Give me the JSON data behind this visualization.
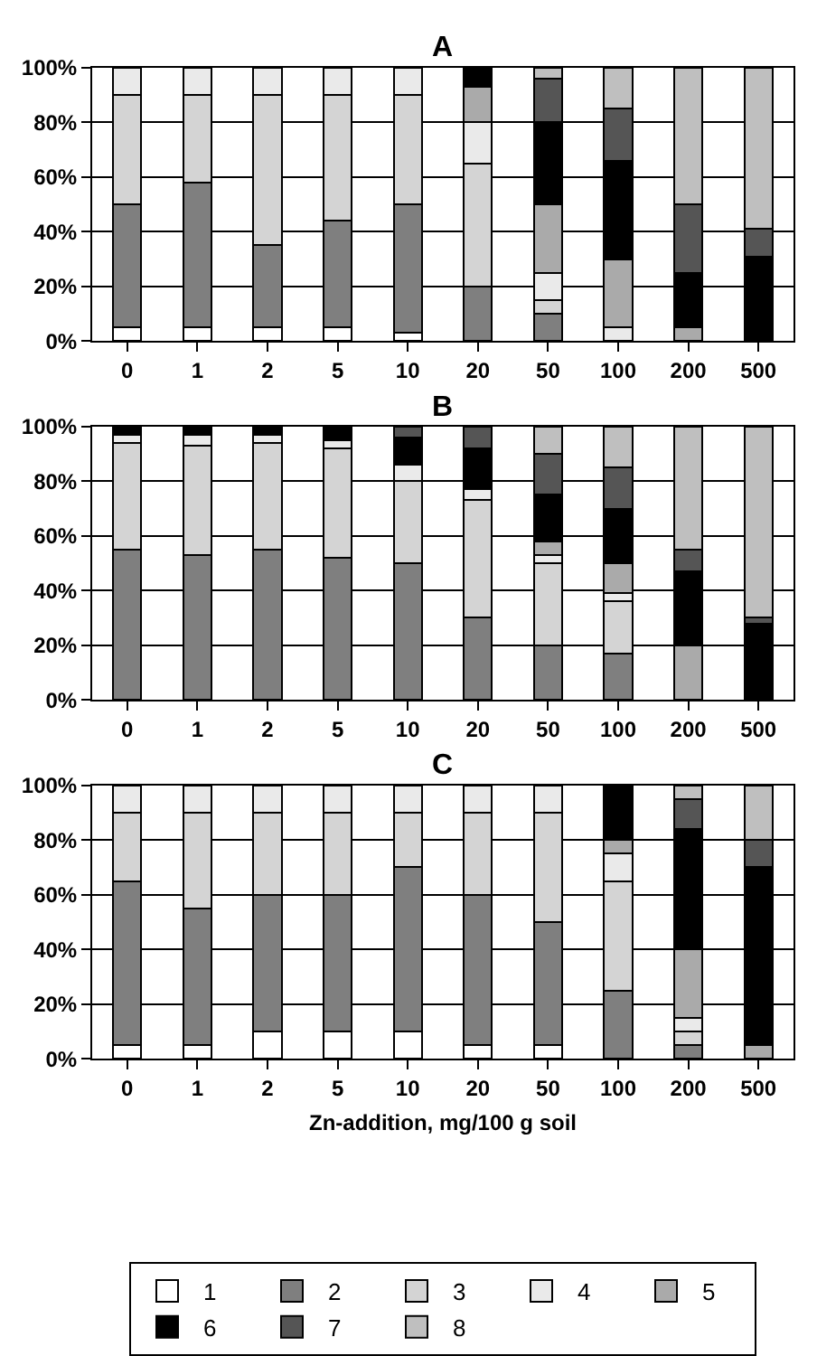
{
  "chart_data": [
    {
      "type": "bar",
      "title": "A",
      "stacked": true,
      "categories": [
        "0",
        "1",
        "2",
        "5",
        "10",
        "20",
        "50",
        "100",
        "200",
        "500"
      ],
      "ylim": [
        0,
        100
      ],
      "yticks": [
        {
          "value": 0,
          "label": "0%"
        },
        {
          "value": 20,
          "label": "20%"
        },
        {
          "value": 40,
          "label": "40%"
        },
        {
          "value": 60,
          "label": "60%"
        },
        {
          "value": 80,
          "label": "80%"
        },
        {
          "value": 100,
          "label": "100%"
        }
      ],
      "grid": "y",
      "series": [
        {
          "color": "#ffffff",
          "values": [
            5,
            5,
            5,
            5,
            3,
            null,
            null,
            null,
            null,
            null
          ]
        },
        {
          "color": "#7f7f7f",
          "values": [
            45,
            53,
            30,
            39,
            47,
            20,
            10,
            null,
            null,
            null
          ]
        },
        {
          "color": "#d4d4d4",
          "values": [
            40,
            32,
            55,
            46,
            40,
            45,
            5,
            null,
            null,
            null
          ]
        },
        {
          "color": "#eaeaea",
          "values": [
            10,
            10,
            10,
            10,
            10,
            15,
            10,
            5,
            null,
            null
          ]
        },
        {
          "color": "#aaaaaa",
          "values": [
            null,
            null,
            null,
            null,
            null,
            13,
            25,
            25,
            5,
            null
          ]
        },
        {
          "color": "#000000",
          "values": [
            null,
            null,
            null,
            null,
            null,
            7,
            30,
            36,
            20,
            31
          ]
        },
        {
          "color": "#555555",
          "values": [
            null,
            null,
            null,
            null,
            null,
            null,
            16,
            19,
            25,
            10
          ]
        },
        {
          "color": "#bfbfbf",
          "values": [
            null,
            null,
            null,
            null,
            null,
            null,
            4,
            15,
            50,
            59
          ]
        }
      ]
    },
    {
      "type": "bar",
      "title": "B",
      "stacked": true,
      "categories": [
        "0",
        "1",
        "2",
        "5",
        "10",
        "20",
        "50",
        "100",
        "200",
        "500"
      ],
      "ylim": [
        0,
        100
      ],
      "yticks": [
        {
          "value": 0,
          "label": "0%"
        },
        {
          "value": 20,
          "label": "20%"
        },
        {
          "value": 40,
          "label": "40%"
        },
        {
          "value": 60,
          "label": "60%"
        },
        {
          "value": 80,
          "label": "80%"
        },
        {
          "value": 100,
          "label": "100%"
        }
      ],
      "grid": "y",
      "series": [
        {
          "color": "#7f7f7f",
          "values": [
            55,
            53,
            55,
            52,
            50,
            30,
            20,
            17,
            null,
            null
          ]
        },
        {
          "color": "#d4d4d4",
          "values": [
            39,
            40,
            39,
            40,
            30,
            43,
            30,
            19,
            null,
            null
          ]
        },
        {
          "color": "#eaeaea",
          "values": [
            3,
            4,
            3,
            3,
            6,
            4,
            3,
            3,
            null,
            null
          ]
        },
        {
          "color": "#aaaaaa",
          "values": [
            null,
            null,
            null,
            null,
            null,
            null,
            5,
            11,
            20,
            null
          ]
        },
        {
          "color": "#000000",
          "values": [
            3,
            3,
            3,
            5,
            10,
            15,
            17,
            20,
            27,
            28
          ]
        },
        {
          "color": "#555555",
          "values": [
            null,
            null,
            null,
            null,
            4,
            8,
            15,
            15,
            8,
            2
          ]
        },
        {
          "color": "#bfbfbf",
          "values": [
            null,
            null,
            null,
            null,
            null,
            null,
            10,
            15,
            45,
            70
          ]
        }
      ]
    },
    {
      "type": "bar",
      "title": "C",
      "stacked": true,
      "xlabel": "Zn-addition, mg/100 g soil",
      "legend": "bottom",
      "categories": [
        "0",
        "1",
        "2",
        "5",
        "10",
        "20",
        "50",
        "100",
        "200",
        "500"
      ],
      "ylim": [
        0,
        100
      ],
      "yticks": [
        {
          "value": 0,
          "label": "0%"
        },
        {
          "value": 20,
          "label": "20%"
        },
        {
          "value": 40,
          "label": "40%"
        },
        {
          "value": 60,
          "label": "60%"
        },
        {
          "value": 80,
          "label": "80%"
        },
        {
          "value": 100,
          "label": "100%"
        }
      ],
      "grid": "y",
      "series": [
        {
          "name": "1",
          "color": "#ffffff",
          "values": [
            5,
            5,
            10,
            10,
            10,
            5,
            5,
            null,
            null,
            null
          ]
        },
        {
          "name": "2",
          "color": "#7f7f7f",
          "values": [
            60,
            50,
            50,
            50,
            60,
            55,
            45,
            25,
            5,
            null
          ]
        },
        {
          "name": "3",
          "color": "#d4d4d4",
          "values": [
            25,
            35,
            30,
            30,
            20,
            30,
            40,
            40,
            5,
            null
          ]
        },
        {
          "name": "4",
          "color": "#eaeaea",
          "values": [
            10,
            10,
            10,
            10,
            10,
            10,
            10,
            10,
            5,
            null
          ]
        },
        {
          "name": "5",
          "color": "#aaaaaa",
          "values": [
            null,
            null,
            null,
            null,
            null,
            null,
            null,
            5,
            25,
            5
          ]
        },
        {
          "name": "6",
          "color": "#000000",
          "values": [
            null,
            null,
            null,
            null,
            null,
            null,
            null,
            20,
            44,
            65
          ]
        },
        {
          "name": "7",
          "color": "#555555",
          "values": [
            null,
            null,
            null,
            null,
            null,
            null,
            null,
            null,
            11,
            10
          ]
        },
        {
          "name": "8",
          "color": "#bfbfbf",
          "values": [
            null,
            null,
            null,
            null,
            null,
            null,
            null,
            null,
            5,
            20
          ]
        }
      ]
    }
  ]
}
